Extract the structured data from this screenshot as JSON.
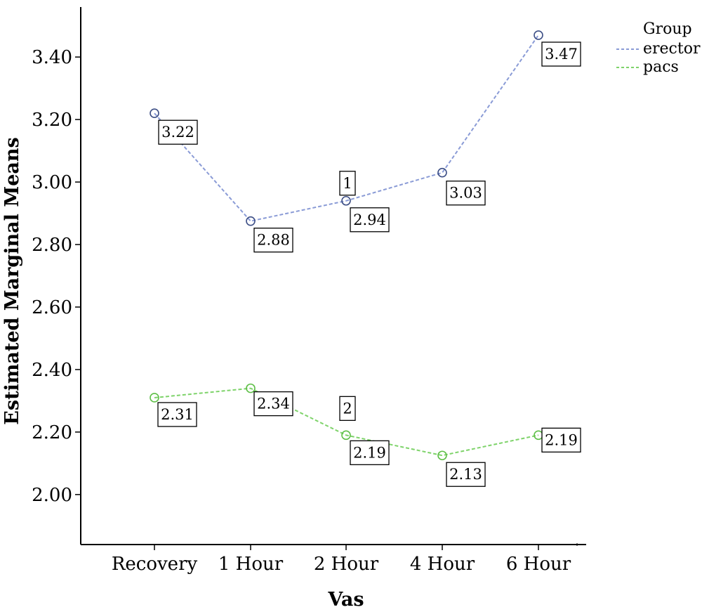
{
  "chart_data": {
    "type": "line",
    "xlabel": "Vas",
    "ylabel": "Estimated Marginal Means",
    "categories": [
      "Recovery",
      "1 Hour",
      "2 Hour",
      "4 Hour",
      "6 Hour"
    ],
    "ylim": [
      1.84,
      3.56
    ],
    "yticks": [
      "2.00",
      "2.20",
      "2.40",
      "2.60",
      "2.80",
      "3.00",
      "3.20",
      "3.40"
    ],
    "legend": {
      "title": "Group",
      "position": "top-right"
    },
    "series": [
      {
        "name": "erector",
        "color": "#8a9bd6",
        "marker_color": "#3d4f86",
        "values": [
          3.22,
          2.875,
          2.94,
          3.03,
          3.47
        ],
        "labels": [
          "3.22",
          "2.88",
          "2.94",
          "3.03",
          "3.47"
        ],
        "annotation": "1"
      },
      {
        "name": "pacs",
        "color": "#7ed36a",
        "marker_color": "#5fbf48",
        "values": [
          2.31,
          2.34,
          2.19,
          2.125,
          2.19
        ],
        "labels": [
          "2.31",
          "2.34",
          "2.19",
          "2.13",
          "2.19"
        ],
        "annotation": "2"
      }
    ]
  }
}
